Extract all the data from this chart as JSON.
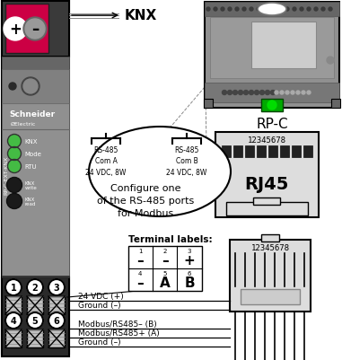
{
  "bg_color": "#ffffff",
  "knx_label": "KNX",
  "rpc_label": "RP-C",
  "rj45_label": "RJ45",
  "terminal_labels_title": "Terminal labels:",
  "com_a_lines": [
    "RS-485",
    "Com A",
    "24 VDC, 8W"
  ],
  "com_b_lines": [
    "RS-485",
    "Com B",
    "24 VDC, 8W"
  ],
  "configure_lines": [
    "Configure one",
    "of the RS-485 ports",
    "for Modbus"
  ],
  "wire_labels_top": [
    "24 VDC (+)",
    "Ground (–)"
  ],
  "wire_labels_bot": [
    "Modbus/RS485– (B)",
    "Modbus/RS485+ (A)",
    "Ground (–)"
  ],
  "term_top_nums": [
    "1",
    "2",
    "3"
  ],
  "term_bot_nums": [
    "4",
    "5",
    "6"
  ],
  "term_top_signs": [
    "–",
    "–",
    "+"
  ],
  "term_bot_signs": [
    "–",
    "A",
    "B"
  ],
  "knx_red": "#cc0044",
  "green_led": "#44bb44",
  "body_gray": "#909090",
  "dark_gray": "#555555",
  "mid_gray": "#777777"
}
